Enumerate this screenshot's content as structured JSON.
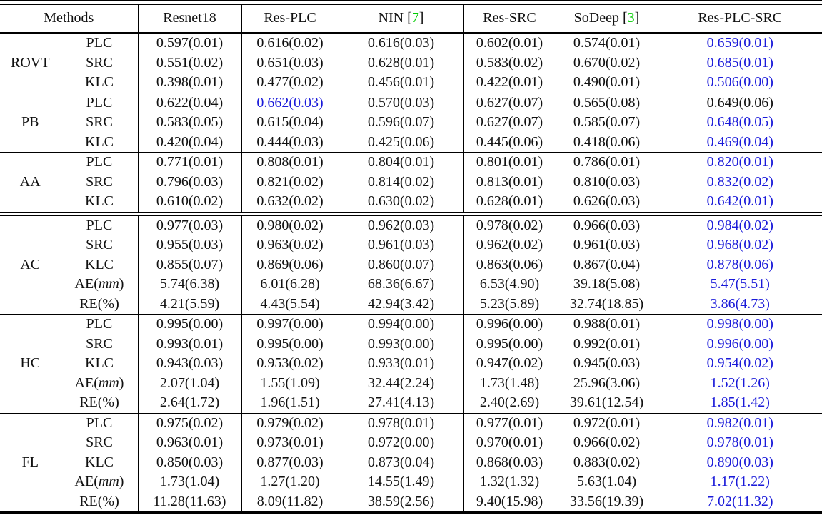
{
  "table": {
    "methods_header": "Methods",
    "columns": [
      {
        "label": "Resnet18",
        "cite": null
      },
      {
        "label": "Res-PLC",
        "cite": null
      },
      {
        "label": "NIN",
        "cite": "7"
      },
      {
        "label": "Res-SRC",
        "cite": null
      },
      {
        "label": "SoDeep",
        "cite": "3"
      },
      {
        "label": "Res-PLC-SRC",
        "cite": null
      }
    ],
    "colors": {
      "highlight_blue": "#1a1ad9",
      "citation_green": "#00cc00",
      "text": "#111111"
    },
    "groups": [
      {
        "name": "ROVT",
        "double_rule_before": false,
        "rows": [
          {
            "metric": "PLC",
            "values": [
              "0.597(0.01)",
              "0.616(0.02)",
              "0.616(0.03)",
              "0.602(0.01)",
              "0.574(0.01)",
              "0.659(0.01)"
            ],
            "blue": [
              5
            ]
          },
          {
            "metric": "SRC",
            "values": [
              "0.551(0.02)",
              "0.651(0.03)",
              "0.628(0.01)",
              "0.583(0.02)",
              "0.670(0.02)",
              "0.685(0.01)"
            ],
            "blue": [
              5
            ]
          },
          {
            "metric": "KLC",
            "values": [
              "0.398(0.01)",
              "0.477(0.02)",
              "0.456(0.01)",
              "0.422(0.01)",
              "0.490(0.01)",
              "0.506(0.00)"
            ],
            "blue": [
              5
            ]
          }
        ]
      },
      {
        "name": "PB",
        "double_rule_before": false,
        "rows": [
          {
            "metric": "PLC",
            "values": [
              "0.622(0.04)",
              "0.662(0.03)",
              "0.570(0.03)",
              "0.627(0.07)",
              "0.565(0.08)",
              "0.649(0.06)"
            ],
            "blue": [
              1
            ]
          },
          {
            "metric": "SRC",
            "values": [
              "0.583(0.05)",
              "0.615(0.04)",
              "0.596(0.07)",
              "0.627(0.07)",
              "0.585(0.07)",
              "0.648(0.05)"
            ],
            "blue": [
              5
            ]
          },
          {
            "metric": "KLC",
            "values": [
              "0.420(0.04)",
              "0.444(0.03)",
              "0.425(0.06)",
              "0.445(0.06)",
              "0.418(0.06)",
              "0.469(0.04)"
            ],
            "blue": [
              5
            ]
          }
        ]
      },
      {
        "name": "AA",
        "double_rule_before": false,
        "rows": [
          {
            "metric": "PLC",
            "values": [
              "0.771(0.01)",
              "0.808(0.01)",
              "0.804(0.01)",
              "0.801(0.01)",
              "0.786(0.01)",
              "0.820(0.01)"
            ],
            "blue": [
              5
            ]
          },
          {
            "metric": "SRC",
            "values": [
              "0.796(0.03)",
              "0.821(0.02)",
              "0.814(0.02)",
              "0.813(0.01)",
              "0.810(0.03)",
              "0.832(0.02)"
            ],
            "blue": [
              5
            ]
          },
          {
            "metric": "KLC",
            "values": [
              "0.610(0.02)",
              "0.632(0.02)",
              "0.630(0.02)",
              "0.628(0.01)",
              "0.626(0.03)",
              "0.642(0.01)"
            ],
            "blue": [
              5
            ]
          }
        ]
      },
      {
        "name": "AC",
        "double_rule_before": true,
        "rows": [
          {
            "metric": "PLC",
            "values": [
              "0.977(0.03)",
              "0.980(0.02)",
              "0.962(0.03)",
              "0.978(0.02)",
              "0.966(0.03)",
              "0.984(0.02)"
            ],
            "blue": [
              5
            ]
          },
          {
            "metric": "SRC",
            "values": [
              "0.955(0.03)",
              "0.963(0.02)",
              "0.961(0.03)",
              "0.962(0.02)",
              "0.961(0.03)",
              "0.968(0.02)"
            ],
            "blue": [
              5
            ]
          },
          {
            "metric": "KLC",
            "values": [
              "0.855(0.07)",
              "0.869(0.06)",
              "0.860(0.07)",
              "0.863(0.06)",
              "0.867(0.04)",
              "0.878(0.06)"
            ],
            "blue": [
              5
            ]
          },
          {
            "metric": "AE(mm)",
            "italic": "mm",
            "values": [
              "5.74(6.38)",
              "6.01(6.28)",
              "68.36(6.67)",
              "6.53(4.90)",
              "39.18(5.08)",
              "5.47(5.51)"
            ],
            "blue": [
              5
            ]
          },
          {
            "metric": "RE(%)",
            "values": [
              "4.21(5.59)",
              "4.43(5.54)",
              "42.94(3.42)",
              "5.23(5.89)",
              "32.74(18.85)",
              "3.86(4.73)"
            ],
            "blue": [
              5
            ]
          }
        ]
      },
      {
        "name": "HC",
        "double_rule_before": false,
        "rows": [
          {
            "metric": "PLC",
            "values": [
              "0.995(0.00)",
              "0.997(0.00)",
              "0.994(0.00)",
              "0.996(0.00)",
              "0.988(0.01)",
              "0.998(0.00)"
            ],
            "blue": [
              5
            ]
          },
          {
            "metric": "SRC",
            "values": [
              "0.993(0.01)",
              "0.995(0.00)",
              "0.993(0.00)",
              "0.995(0.00)",
              "0.992(0.01)",
              "0.996(0.00)"
            ],
            "blue": [
              5
            ]
          },
          {
            "metric": "KLC",
            "values": [
              "0.943(0.03)",
              "0.953(0.02)",
              "0.933(0.01)",
              "0.947(0.02)",
              "0.945(0.03)",
              "0.954(0.02)"
            ],
            "blue": [
              5
            ]
          },
          {
            "metric": "AE(mm)",
            "italic": "mm",
            "values": [
              "2.07(1.04)",
              "1.55(1.09)",
              "32.44(2.24)",
              "1.73(1.48)",
              "25.96(3.06)",
              "1.52(1.26)"
            ],
            "blue": [
              5
            ]
          },
          {
            "metric": "RE(%)",
            "values": [
              "2.64(1.72)",
              "1.96(1.51)",
              "27.41(4.13)",
              "2.40(2.69)",
              "39.61(12.54)",
              "1.85(1.42)"
            ],
            "blue": [
              5
            ]
          }
        ]
      },
      {
        "name": "FL",
        "double_rule_before": false,
        "rows": [
          {
            "metric": "PLC",
            "values": [
              "0.975(0.02)",
              "0.979(0.02)",
              "0.978(0.01)",
              "0.977(0.01)",
              "0.972(0.01)",
              "0.982(0.01)"
            ],
            "blue": [
              5
            ]
          },
          {
            "metric": "SRC",
            "values": [
              "0.963(0.01)",
              "0.973(0.01)",
              "0.972(0.00)",
              "0.970(0.01)",
              "0.966(0.02)",
              "0.978(0.01)"
            ],
            "blue": [
              5
            ]
          },
          {
            "metric": "KLC",
            "values": [
              "0.850(0.03)",
              "0.877(0.03)",
              "0.873(0.04)",
              "0.868(0.03)",
              "0.883(0.02)",
              "0.890(0.03)"
            ],
            "blue": [
              5
            ]
          },
          {
            "metric": "AE(mm)",
            "italic": "mm",
            "values": [
              "1.73(1.04)",
              "1.27(1.20)",
              "14.55(1.49)",
              "1.32(1.32)",
              "5.63(1.04)",
              "1.17(1.22)"
            ],
            "blue": [
              5
            ]
          },
          {
            "metric": "RE(%)",
            "values": [
              "11.28(11.63)",
              "8.09(11.82)",
              "38.59(2.56)",
              "9.40(15.98)",
              "33.56(19.39)",
              "7.02(11.32)"
            ],
            "blue": [
              5
            ]
          }
        ]
      }
    ]
  }
}
